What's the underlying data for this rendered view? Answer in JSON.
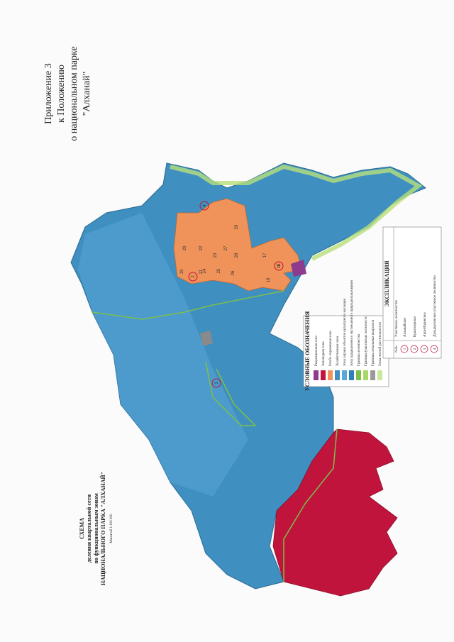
{
  "header": {
    "lines": [
      "Приложение 3",
      "к Положению",
      "о национальном парке",
      "\"Алханай\""
    ]
  },
  "map_title": {
    "lines": [
      "СХЕМА",
      "деления квартальной сети",
      "по функциональным зонам",
      "НАЦИОНАЛЬНОГО ПАРКА \"АЛХАНАЙ\"",
      "Масштаб 1:100 000"
    ]
  },
  "legend": {
    "title": "УСЛОВНЫЕ ОБОЗНАЧЕНИЯ",
    "items": [
      {
        "label": "Рекреационная зона",
        "color": "#8e3a8e"
      },
      {
        "label": "Заповедная зона",
        "color": "#c0143c"
      },
      {
        "label": "Особо охраняемая зона",
        "color": "#f0935a"
      },
      {
        "label": "Хозяйственная зона",
        "color": "#3f8fc0"
      },
      {
        "label": "Зона охраны объектов культурного наследия",
        "color": "#5aa8d8"
      },
      {
        "label": "Зона традиционного экстенсивного природопользования",
        "color": "#2f7fb8"
      },
      {
        "label": "Граница лесничества",
        "color": "#7cc04a"
      },
      {
        "label": "Границы участковых лесничеств",
        "color": "#a8d86a"
      },
      {
        "label": "Границы зональных кварталов",
        "color": "#9a9a9a"
      },
      {
        "label": "Зоны лесной растительности",
        "color": "#c8e89a"
      }
    ]
  },
  "explication": {
    "title": "ЭКСПЛИКАЦИЯ",
    "columns": [
      "№№",
      "Участковое лесничество"
    ],
    "rows": [
      [
        "1",
        "Алханайское"
      ],
      [
        "2",
        "Красноярское"
      ],
      [
        "3",
        "Арш-Ицаинское"
      ],
      [
        "4",
        "Дульдургинское участковое лесничество"
      ]
    ]
  },
  "quarters": [
    "19",
    "20",
    "21",
    "22",
    "23",
    "24",
    "25",
    "26",
    "27",
    "28",
    "29",
    "16",
    "17",
    "18"
  ]
}
